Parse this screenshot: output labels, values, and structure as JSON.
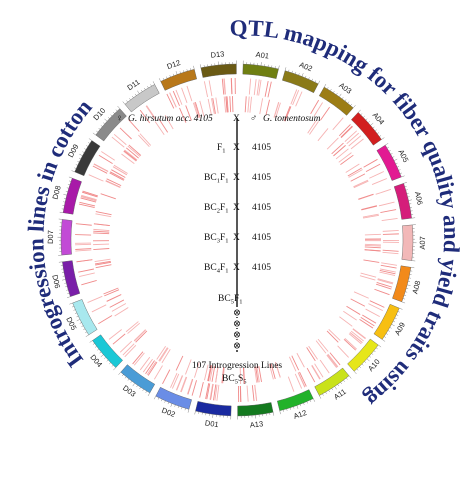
{
  "figure": {
    "title_left": "Introgression lines in cotton",
    "title_right": "QTL mapping for fiber quality and yield traits using",
    "title_color": "#1f2c7a"
  },
  "chromosomes": [
    {
      "name": "A01",
      "color": "#6f7f12"
    },
    {
      "name": "A02",
      "color": "#8a7a18"
    },
    {
      "name": "A03",
      "color": "#9c7d15"
    },
    {
      "name": "A04",
      "color": "#d21f1f"
    },
    {
      "name": "A05",
      "color": "#e21a92"
    },
    {
      "name": "A06",
      "color": "#d51d7a"
    },
    {
      "name": "A07",
      "color": "#f2b8b8"
    },
    {
      "name": "A08",
      "color": "#f28a1a"
    },
    {
      "name": "A09",
      "color": "#f7bf12"
    },
    {
      "name": "A10",
      "color": "#e6e61a"
    },
    {
      "name": "A11",
      "color": "#c9e21a"
    },
    {
      "name": "A12",
      "color": "#22b22a"
    },
    {
      "name": "A13",
      "color": "#147a1f"
    },
    {
      "name": "D01",
      "color": "#1a2aa0"
    },
    {
      "name": "D02",
      "color": "#6a8de6"
    },
    {
      "name": "D03",
      "color": "#4a9cd6"
    },
    {
      "name": "D04",
      "color": "#1ac8d6"
    },
    {
      "name": "D05",
      "color": "#a8e8ee"
    },
    {
      "name": "D06",
      "color": "#7a1fa8"
    },
    {
      "name": "D07",
      "color": "#c24ad6"
    },
    {
      "name": "D08",
      "color": "#a81aa8"
    },
    {
      "name": "D09",
      "color": "#3a3a3a"
    },
    {
      "name": "D10",
      "color": "#8a8a8a"
    },
    {
      "name": "D11",
      "color": "#c8c8c8"
    },
    {
      "name": "D12",
      "color": "#b8781a"
    },
    {
      "name": "D13",
      "color": "#6a5a14"
    }
  ],
  "crossing_scheme": {
    "female_symbol": "♀",
    "female_parent": "G. hirsutum acc. 4105",
    "cross_mark": "X",
    "male_symbol": "♂",
    "male_parent": "G. tomentosum",
    "generations": [
      {
        "label": "F",
        "sub": "1",
        "label2": "",
        "sub2": "",
        "parent": "4105",
        "cross": "X"
      },
      {
        "label": "BC",
        "sub": "1",
        "label2": "F",
        "sub2": "1",
        "parent": "4105",
        "cross": "X"
      },
      {
        "label": "BC",
        "sub": "2",
        "label2": "F",
        "sub2": "1",
        "parent": "4105",
        "cross": "X"
      },
      {
        "label": "BC",
        "sub": "3",
        "label2": "F",
        "sub2": "1",
        "parent": "4105",
        "cross": "X"
      },
      {
        "label": "BC",
        "sub": "4",
        "label2": "F",
        "sub2": "1",
        "parent": "4105",
        "cross": "X"
      }
    ],
    "selfing": {
      "label": "BC",
      "sub": "5",
      "label2": "F",
      "sub2": "1"
    },
    "self_symbol": "⊗",
    "self_count": 4,
    "result_text": "107 Introgression Lines",
    "final": {
      "label": "BC",
      "sub": "5",
      "label2": "S",
      "sub2": "5"
    }
  }
}
